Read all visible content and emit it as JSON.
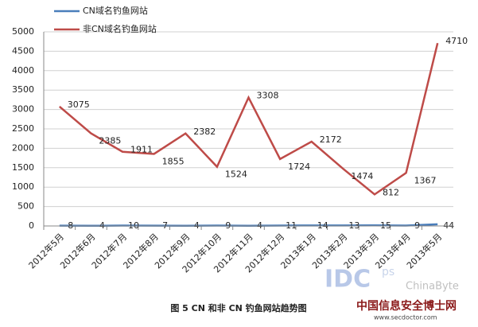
{
  "chart_data": {
    "type": "line",
    "categories": [
      "2012年5月",
      "2012年6月",
      "2012年7月",
      "2012年8月",
      "2012年9月",
      "2012年10月",
      "2012年11月",
      "2012年12月",
      "2013年1月",
      "2013年2月",
      "2013年3月",
      "2013年4月",
      "2013年5月"
    ],
    "series": [
      {
        "name": "CN域名钓鱼网站",
        "color": "#4a7ebb",
        "values": [
          8,
          4,
          10,
          7,
          4,
          9,
          4,
          11,
          14,
          13,
          15,
          9,
          44
        ]
      },
      {
        "name": "非CN域名钓鱼网站",
        "color": "#be4b48",
        "values": [
          3075,
          2385,
          1911,
          1855,
          2382,
          1524,
          3308,
          1724,
          2172,
          1474,
          812,
          1367,
          4710
        ]
      }
    ],
    "ylim": [
      0,
      5000
    ],
    "yticks": [
      0,
      500,
      1000,
      1500,
      2000,
      2500,
      3000,
      3500,
      4000,
      4500,
      5000
    ],
    "grid": true,
    "legend": "top-left",
    "caption": "图 5 CN 和非 CN 钓鱼网站趋势图",
    "watermarks": [
      "IDC",
      "ps",
      "ChinaByte",
      "中国信息安全博士网",
      "www.secdoctor.com"
    ]
  }
}
